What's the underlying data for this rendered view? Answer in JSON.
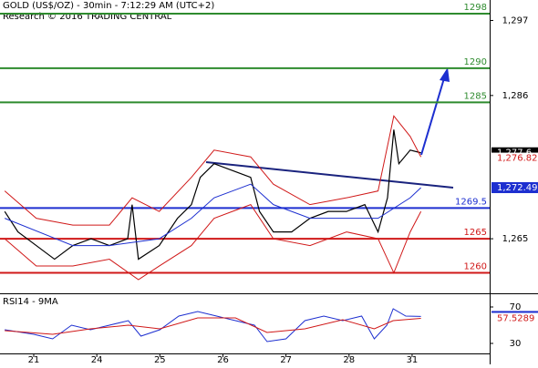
{
  "header": {
    "title": "GOLD (US$/OZ) - 30min - 7:12:29 AM (UTC+2)",
    "subtitle": "Research © 2016 TRADING CENTRAL"
  },
  "chart_data": [
    {
      "type": "line",
      "ylim": [
        1257,
        1300
      ],
      "yticks": [
        {
          "value": 1265,
          "label": "1,265"
        },
        {
          "value": 1286,
          "label": "1,286"
        },
        {
          "value": 1297,
          "label": "1,297"
        }
      ],
      "xlim": [
        -0.535,
        7.23
      ],
      "xticks": [
        {
          "value": 0,
          "label": "21"
        },
        {
          "value": 1,
          "label": "24"
        },
        {
          "value": 2,
          "label": "25"
        },
        {
          "value": 3,
          "label": "26"
        },
        {
          "value": 4,
          "label": "27"
        },
        {
          "value": 5,
          "label": "28"
        },
        {
          "value": 6,
          "label": "31"
        }
      ],
      "levels": [
        {
          "value": 1298,
          "color": "#2e8b2e"
        },
        {
          "value": 1290,
          "color": "#2e8b2e"
        },
        {
          "value": 1285,
          "color": "#2e8b2e"
        },
        {
          "value": 1269.5,
          "color": "#1d2fd0"
        },
        {
          "value": 1265,
          "color": "#d01818"
        },
        {
          "value": 1260,
          "color": "#d01818"
        }
      ],
      "price_tags": [
        {
          "value": 1277.6,
          "label": "1,277.6",
          "color": "#000000"
        },
        {
          "value": 1276.82,
          "label": "1,276.82",
          "color": "#d01818"
        },
        {
          "value": 1272.49,
          "label": "1,272.49",
          "color": "#1d2fd0"
        }
      ],
      "series": [
        {
          "color": "#000000",
          "x": [
            -0.46,
            -0.25,
            0.04,
            0.33,
            0.62,
            0.91,
            1.2,
            1.49,
            1.56,
            1.66,
            1.99,
            2.28,
            2.5,
            2.64,
            2.86,
            3.15,
            3.44,
            3.58,
            3.8,
            4.09,
            4.38,
            4.67,
            4.96,
            5.25,
            5.46,
            5.61,
            5.71,
            5.79,
            5.97,
            6.14
          ],
          "values": [
            1269,
            1266,
            1264,
            1262,
            1264,
            1265,
            1264,
            1265,
            1270,
            1262,
            1264,
            1268,
            1270,
            1274,
            1276,
            1275,
            1274,
            1269,
            1266,
            1266,
            1268,
            1269,
            1269,
            1270,
            1266,
            1271,
            1281,
            1276,
            1278,
            1277.6
          ]
        },
        {
          "color": "#d01818",
          "x": [
            -0.46,
            0.04,
            0.62,
            1.2,
            1.56,
            1.99,
            2.5,
            2.86,
            3.44,
            3.8,
            4.38,
            4.96,
            5.46,
            5.71,
            5.97,
            6.14
          ],
          "values": [
            1272,
            1268,
            1267,
            1267,
            1271,
            1269,
            1274,
            1278,
            1277,
            1273,
            1270,
            1271,
            1272,
            1283,
            1280,
            1277
          ]
        },
        {
          "color": "#d01818",
          "x": [
            -0.46,
            0.04,
            0.62,
            1.2,
            1.66,
            1.99,
            2.5,
            2.86,
            3.44,
            3.8,
            4.38,
            4.96,
            5.46,
            5.71,
            5.97,
            6.14
          ],
          "values": [
            1265,
            1261,
            1261,
            1262,
            1259,
            1261,
            1264,
            1268,
            1270,
            1265,
            1264,
            1266,
            1265,
            1260,
            1266,
            1269
          ]
        },
        {
          "color": "#1d2fd0",
          "x": [
            -0.46,
            0.62,
            1.2,
            1.99,
            2.5,
            2.86,
            3.44,
            3.8,
            4.38,
            4.96,
            5.46,
            5.97,
            6.14
          ],
          "values": [
            1268,
            1264,
            1264,
            1265,
            1268,
            1271,
            1273,
            1270,
            1268,
            1268,
            1268,
            1271,
            1272.49
          ]
        }
      ]
    },
    {
      "type": "line",
      "title": "RSI14 - 9MA",
      "ylim": [
        19,
        84
      ],
      "yticks": [
        70,
        30
      ],
      "xlim": [
        -0.535,
        7.23
      ],
      "price_tags": [
        {
          "value": 59.5803,
          "color": "#1d2fd0"
        },
        {
          "value": 57.5289,
          "color": "#d01818"
        }
      ],
      "series": [
        {
          "color": "#1d2fd0",
          "x": [
            -0.46,
            0,
            0.3,
            0.6,
            0.9,
            1.2,
            1.5,
            1.7,
            2,
            2.3,
            2.6,
            2.9,
            3.2,
            3.5,
            3.7,
            4,
            4.3,
            4.6,
            4.9,
            5.2,
            5.4,
            5.6,
            5.7,
            5.9,
            6.14
          ],
          "values": [
            45,
            40,
            35,
            50,
            45,
            50,
            55,
            38,
            45,
            60,
            65,
            60,
            55,
            50,
            32,
            35,
            55,
            60,
            55,
            60,
            35,
            50,
            68,
            60,
            59.5803
          ]
        },
        {
          "color": "#d01818",
          "x": [
            -0.46,
            0.3,
            0.9,
            1.5,
            2,
            2.6,
            3.2,
            3.7,
            4.3,
            4.9,
            5.4,
            5.7,
            6.14
          ],
          "values": [
            44,
            40,
            46,
            50,
            46,
            58,
            58,
            42,
            46,
            56,
            46,
            55,
            57.5289
          ]
        }
      ]
    }
  ]
}
